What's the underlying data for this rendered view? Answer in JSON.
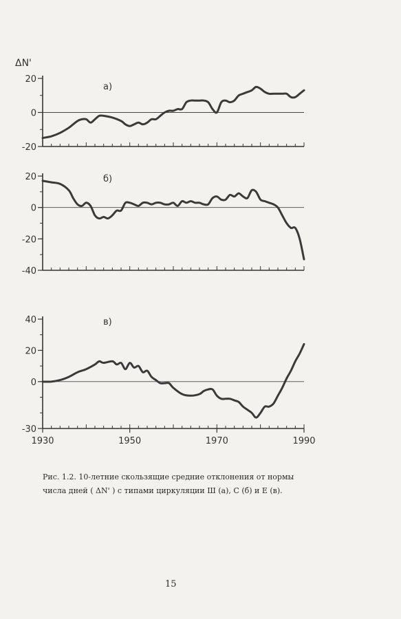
{
  "y_axis_symbol": "ΔN'",
  "caption": {
    "line1": "Рис. 1.2. 10-летние скользящие средние отклонения от нормы",
    "line2": "числа дней ( ΔN' ) с типами циркуляции Ш (а), С (б) и Е (в)."
  },
  "page_number": "15",
  "chart_data": [
    {
      "type": "line",
      "panel_label": "а)",
      "title": "",
      "xlabel": "",
      "ylabel": "ΔN'",
      "xlim": [
        1930,
        1990
      ],
      "ylim": [
        -20,
        20
      ],
      "yticks": [
        20,
        0,
        -20
      ],
      "xticks": [],
      "zero_line": true,
      "series": [
        {
          "x": [
            1930,
            1932,
            1934,
            1936,
            1937,
            1938,
            1939,
            1940,
            1941,
            1942,
            1943,
            1944,
            1946,
            1948,
            1949,
            1950,
            1951,
            1952,
            1953,
            1954,
            1955,
            1956,
            1957,
            1958,
            1959,
            1960,
            1961,
            1962,
            1963,
            1964,
            1965,
            1966,
            1967,
            1968,
            1969,
            1970,
            1971,
            1972,
            1973,
            1974,
            1975,
            1976,
            1977,
            1978,
            1979,
            1980,
            1981,
            1982,
            1983,
            1985,
            1986,
            1987,
            1988,
            1989,
            1990
          ],
          "y": [
            -15,
            -14,
            -12,
            -9,
            -7,
            -5,
            -4,
            -4,
            -6,
            -4,
            -2,
            -2,
            -3,
            -5,
            -7,
            -8,
            -7,
            -6,
            -7,
            -6,
            -4,
            -4,
            -2,
            0,
            1,
            1,
            2,
            2,
            6,
            7,
            7,
            7,
            7,
            6,
            2,
            0,
            6,
            7,
            6,
            7,
            10,
            11,
            12,
            13,
            15,
            14,
            12,
            11,
            11,
            11,
            11,
            9,
            9,
            11,
            13
          ]
        }
      ]
    },
    {
      "type": "line",
      "panel_label": "б)",
      "title": "",
      "xlabel": "",
      "ylabel": "",
      "xlim": [
        1930,
        1990
      ],
      "ylim": [
        -40,
        20
      ],
      "yticks": [
        20,
        0,
        -20,
        -40
      ],
      "xticks": [],
      "zero_line": true,
      "series": [
        {
          "x": [
            1930,
            1932,
            1934,
            1936,
            1937,
            1938,
            1939,
            1940,
            1941,
            1942,
            1943,
            1944,
            1945,
            1946,
            1947,
            1948,
            1949,
            1950,
            1951,
            1952,
            1953,
            1954,
            1955,
            1956,
            1957,
            1958,
            1959,
            1960,
            1961,
            1962,
            1963,
            1964,
            1965,
            1966,
            1967,
            1968,
            1969,
            1970,
            1971,
            1972,
            1973,
            1974,
            1975,
            1976,
            1977,
            1978,
            1979,
            1980,
            1981,
            1982,
            1983,
            1984,
            1985,
            1986,
            1987,
            1988,
            1989,
            1990
          ],
          "y": [
            17,
            16,
            15,
            11,
            6,
            2,
            1,
            3,
            1,
            -5,
            -7,
            -6,
            -7,
            -5,
            -2,
            -2,
            3,
            3,
            2,
            1,
            3,
            3,
            2,
            3,
            3,
            2,
            2,
            3,
            1,
            4,
            3,
            4,
            3,
            3,
            2,
            2,
            6,
            7,
            5,
            5,
            8,
            7,
            9,
            7,
            6,
            11,
            10,
            5,
            4,
            3,
            2,
            0,
            -5,
            -10,
            -13,
            -13,
            -20,
            -33
          ]
        }
      ]
    },
    {
      "type": "line",
      "panel_label": "в)",
      "title": "",
      "xlabel": "",
      "ylabel": "",
      "xlim": [
        1930,
        1990
      ],
      "ylim": [
        -30,
        40
      ],
      "yticks": [
        40,
        20,
        0,
        -30
      ],
      "xticks": [
        1930,
        1950,
        1970,
        1990
      ],
      "zero_line": true,
      "series": [
        {
          "x": [
            1930,
            1932,
            1934,
            1936,
            1938,
            1940,
            1942,
            1943,
            1944,
            1946,
            1947,
            1948,
            1949,
            1950,
            1951,
            1952,
            1953,
            1954,
            1955,
            1956,
            1957,
            1958,
            1959,
            1960,
            1962,
            1964,
            1966,
            1967,
            1968,
            1969,
            1970,
            1971,
            1972,
            1973,
            1974,
            1975,
            1976,
            1977,
            1978,
            1979,
            1980,
            1981,
            1982,
            1983,
            1984,
            1985,
            1986,
            1987,
            1988,
            1989,
            1990
          ],
          "y": [
            0,
            0,
            1,
            3,
            6,
            8,
            11,
            13,
            12,
            13,
            11,
            12,
            8,
            12,
            9,
            10,
            6,
            7,
            3,
            1,
            -1,
            -1,
            -1,
            -4,
            -8,
            -9,
            -8,
            -6,
            -5,
            -5,
            -9,
            -11,
            -11,
            -11,
            -12,
            -13,
            -16,
            -18,
            -20,
            -23,
            -20,
            -16,
            -16,
            -14,
            -9,
            -4,
            2,
            7,
            13,
            18,
            24
          ]
        }
      ]
    }
  ]
}
